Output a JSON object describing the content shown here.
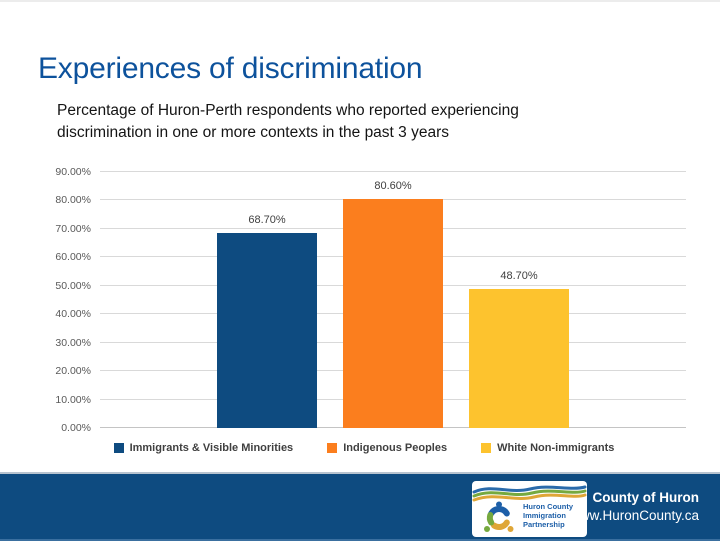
{
  "slide": {
    "title": "Experiences of discrimination",
    "subtitle": "Percentage of Huron-Perth respondents who reported experiencing discrimination in one or more contexts in the past 3 years"
  },
  "chart_data": {
    "type": "bar",
    "title": "Percentage of Huron-Perth respondents who reported experiencing discrimination in one or more contexts in the past 3 years",
    "categories": [
      "Immigrants & Visible Minorities",
      "Indigenous Peoples",
      "White Non-immigrants"
    ],
    "values": [
      68.7,
      80.6,
      48.7
    ],
    "value_labels": [
      "68.70%",
      "80.60%",
      "48.70%"
    ],
    "bar_colors": [
      "#0e4b80",
      "#fb7e1e",
      "#fdc32e"
    ],
    "xlabel": "",
    "ylabel": "",
    "ylim": [
      0,
      90
    ],
    "ytick_step": 10,
    "ytick_labels": [
      "0.00%",
      "10.00%",
      "20.00%",
      "30.00%",
      "40.00%",
      "50.00%",
      "60.00%",
      "70.00%",
      "80.00%",
      "90.00%"
    ],
    "grid": true,
    "legend_position": "bottom",
    "legend": [
      "Immigrants & Visible Minorities",
      "Indigenous Peoples",
      "White Non-immigrants"
    ]
  },
  "footer": {
    "org": "County of Huron",
    "website": "www.HuronCounty.ca",
    "logo_lines": [
      "Huron County",
      "Immigration",
      "Partnership"
    ]
  },
  "colors": {
    "title_blue": "#0d529c",
    "footer_bg": "#0e4b80",
    "bar_blue": "#0e4b80",
    "bar_orange": "#fb7e1e",
    "bar_yellow": "#fdc32e",
    "gridline": "#d9d9d9",
    "label_gray": "#404040"
  }
}
